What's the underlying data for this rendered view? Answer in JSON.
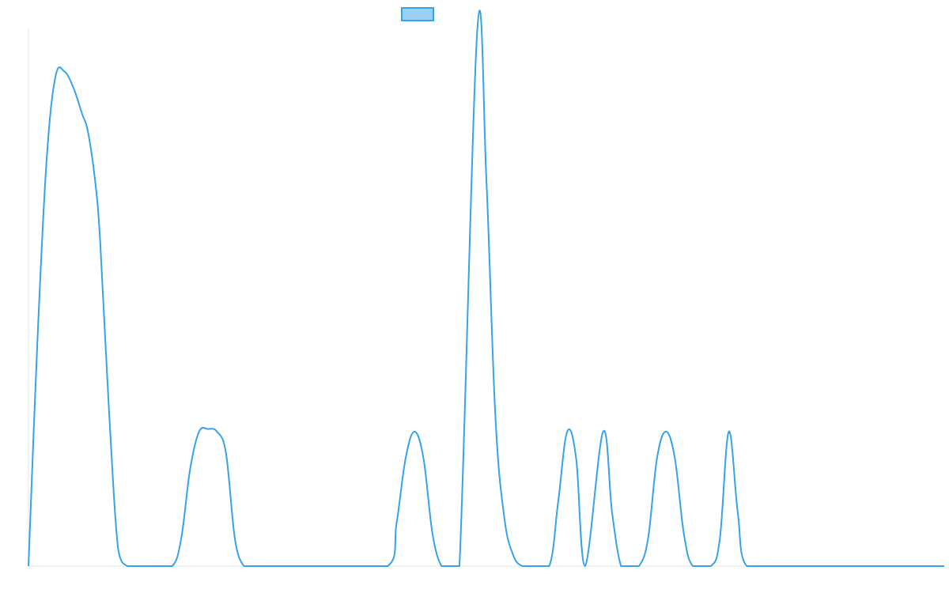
{
  "chart_data": {
    "type": "line",
    "title": "",
    "xlabel": "",
    "ylabel": "",
    "grid": false,
    "legend": {
      "position": "top-center",
      "entries": [
        {
          "label": "",
          "swatch_fill": "#9bd0f5",
          "swatch_stroke": "#36a2eb"
        }
      ]
    },
    "series": [
      {
        "name": "",
        "color": "#36a2eb",
        "x": [
          0,
          0.5,
          1,
          1.5,
          2,
          2.5,
          3,
          3.3,
          3.7,
          4,
          4.5,
          5,
          5.5,
          6,
          7,
          8,
          8.5,
          9,
          9.5,
          10,
          10.5,
          11,
          11.5,
          12,
          12.5,
          13,
          14,
          15,
          17,
          20,
          20.5,
          21,
          21.5,
          22,
          22.5,
          23,
          23.5,
          24,
          25,
          25.5,
          26,
          26.5,
          27,
          27.5,
          28,
          29,
          29.5,
          30,
          30.5,
          31,
          32,
          32.5,
          33,
          33.5,
          34,
          34.5,
          35,
          35.5,
          36,
          36.5,
          37,
          38,
          38.5,
          39,
          39.5,
          40,
          42,
          44,
          51
        ],
        "y": [
          0,
          42,
          75,
          91,
          92,
          89,
          84,
          81,
          72,
          60,
          28,
          3,
          0,
          0,
          0,
          0,
          5,
          18,
          25,
          25.5,
          25,
          21,
          5,
          0,
          0,
          0,
          0,
          0,
          0,
          0,
          8,
          20,
          25,
          20,
          6,
          0,
          0,
          0,
          100,
          72,
          28,
          9,
          2,
          0,
          0,
          0,
          12,
          25,
          20,
          0,
          25,
          10,
          0,
          0,
          0,
          5,
          20,
          25,
          20,
          6,
          0,
          0,
          5,
          25,
          10,
          0,
          0,
          0,
          0
        ]
      }
    ],
    "xlim": [
      0,
      51
    ],
    "ylim": [
      0,
      100
    ]
  }
}
